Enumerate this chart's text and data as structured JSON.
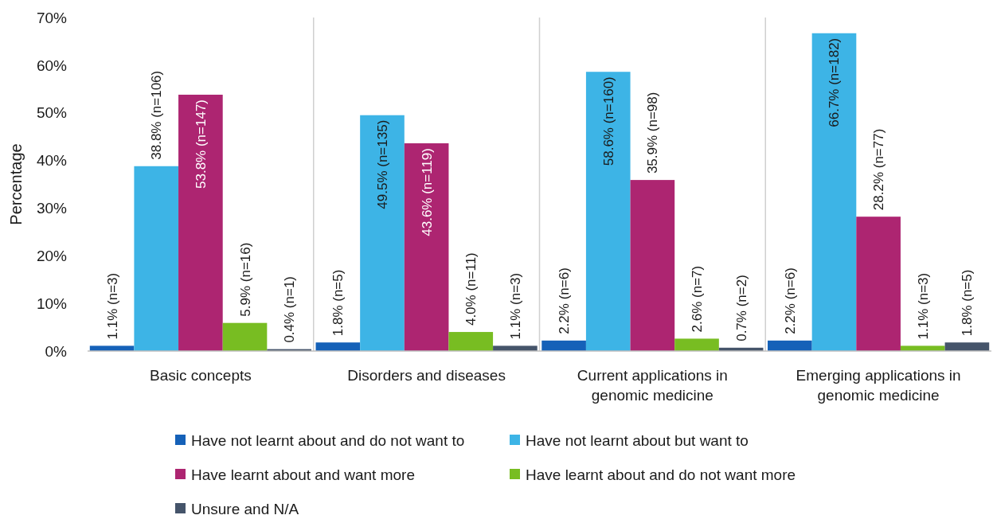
{
  "chart_data": {
    "type": "bar",
    "ylabel": "Percentage",
    "categories": [
      "Basic concepts",
      "Disorders and diseases",
      "Current applications in genomic medicine",
      "Emerging applications in genomic medicine"
    ],
    "ylim": [
      0,
      70
    ],
    "yticks": [
      {
        "value": 0,
        "label": "0%"
      },
      {
        "value": 10,
        "label": "10%"
      },
      {
        "value": 20,
        "label": "20%"
      },
      {
        "value": 30,
        "label": "30%"
      },
      {
        "value": 40,
        "label": "40%"
      },
      {
        "value": 50,
        "label": "50%"
      },
      {
        "value": 60,
        "label": "60%"
      },
      {
        "value": 70,
        "label": "70%"
      }
    ],
    "grid": "x",
    "legend": "bottom",
    "series": [
      {
        "name": "Have not learnt about and do not want to",
        "color": "#1561b8",
        "values": [
          1.1,
          1.8,
          2.2,
          2.2
        ],
        "value_labels": [
          "1.1% (n=3)",
          "1.8% (n=5)",
          "2.2% (n=6)",
          "2.2% (n=6)"
        ]
      },
      {
        "name": "Have not learnt about but want to",
        "color": "#3db4e6",
        "values": [
          38.8,
          49.5,
          58.6,
          66.7
        ],
        "value_labels": [
          "38.8% (n=106)",
          "49.5% (n=135)",
          "58.6% (n=160)",
          "66.7% (n=182)"
        ]
      },
      {
        "name": "Have learnt about and want more",
        "color": "#ad2571",
        "values": [
          53.8,
          43.6,
          35.9,
          28.2
        ],
        "value_labels": [
          "53.8% (n=147)",
          "43.6% (n=119)",
          "35.9% (n=98)",
          "28.2% (n=77)"
        ]
      },
      {
        "name": "Have learnt about and do not want more",
        "color": "#78bd22",
        "values": [
          5.9,
          4.0,
          2.6,
          1.1
        ],
        "value_labels": [
          "5.9% (n=16)",
          "4.0% (n=11)",
          "2.6% (n=7)",
          "1.1% (n=3)"
        ]
      },
      {
        "name": "Unsure and N/A",
        "color": "#45546a",
        "values": [
          0.4,
          1.1,
          0.7,
          1.8
        ],
        "value_labels": [
          "0.4% (n=1)",
          "1.1% (n=3)",
          "0.7% (n=2)",
          "1.8% (n=5)"
        ]
      }
    ]
  }
}
